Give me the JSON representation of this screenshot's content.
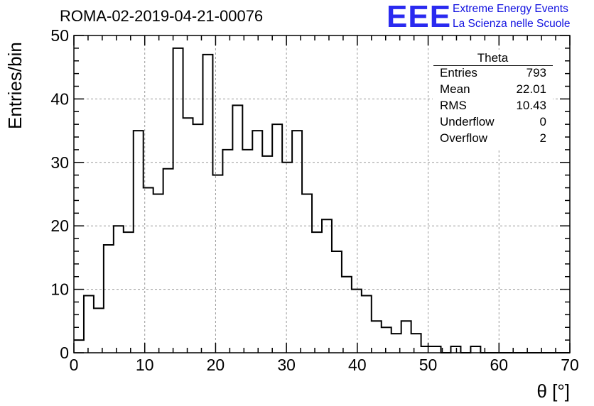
{
  "run_title": "ROMA-02-2019-04-21-00076",
  "logo": {
    "mark": "EEE",
    "line1": "Extreme Energy Events",
    "line2": "La Scienza nelle Scuole",
    "color": "#2a2af0"
  },
  "stats": {
    "title": "Theta",
    "rows": [
      {
        "key": "Entries",
        "value": "793"
      },
      {
        "key": "Mean",
        "value": "22.01"
      },
      {
        "key": "RMS",
        "value": "10.43"
      },
      {
        "key": "Underflow",
        "value": "0"
      },
      {
        "key": "Overflow",
        "value": "2"
      }
    ]
  },
  "chart_data": {
    "type": "histogram",
    "title": "ROMA-02-2019-04-21-00076",
    "xlabel": "θ [°]",
    "ylabel": "Entries/bin",
    "xlim": [
      0,
      70
    ],
    "ylim": [
      0,
      50
    ],
    "bin_width": 1.4,
    "x_ticks": [
      0,
      10,
      20,
      30,
      40,
      50,
      60,
      70
    ],
    "y_ticks": [
      0,
      10,
      20,
      30,
      40,
      50
    ],
    "grid": true,
    "values": [
      2,
      9,
      7,
      17,
      20,
      19,
      35,
      26,
      25,
      29,
      48,
      37,
      36,
      47,
      28,
      32,
      39,
      32,
      35,
      31,
      36,
      30,
      35,
      25,
      19,
      21,
      16,
      12,
      10,
      9,
      5,
      4,
      3,
      5,
      3,
      1,
      1,
      0,
      1,
      0,
      1,
      0,
      0,
      0,
      0,
      0,
      0,
      0,
      0,
      0
    ],
    "line_color": "#000000"
  }
}
